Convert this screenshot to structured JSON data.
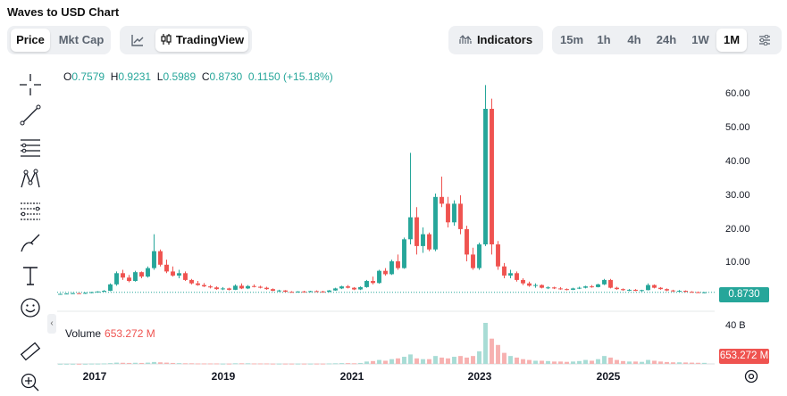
{
  "title": "Waves to USD Chart",
  "view_toggle": {
    "price": "Price",
    "mkt_cap": "Mkt Cap",
    "active": "Price"
  },
  "chart_style": {
    "tradingview": "TradingView"
  },
  "indicators_label": "Indicators",
  "timeframes": [
    "15m",
    "1h",
    "4h",
    "24h",
    "1W",
    "1M"
  ],
  "active_timeframe": "1M",
  "ohlc": {
    "o_label": "O",
    "o": "0.7579",
    "h_label": "H",
    "h": "0.9231",
    "l_label": "L",
    "l": "0.5989",
    "c_label": "C",
    "c": "0.8730",
    "change": "0.1150 (+15.18%)"
  },
  "y_axis_labels": [
    "60.00",
    "50.00",
    "40.00",
    "30.00",
    "20.00",
    "10.00"
  ],
  "current_price": "0.8730",
  "volume": {
    "label": "Volume",
    "value": "653.272 M",
    "axis_label": "40 B",
    "tag": "653.272 M"
  },
  "x_axis_labels": [
    "2017",
    "2019",
    "2021",
    "2023",
    "2025"
  ],
  "colors": {
    "up": "#26a69a",
    "down": "#ef5350",
    "vol_up": "#a8dcd5",
    "vol_down": "#f7b1b0",
    "accent": "#26a69a"
  },
  "chart_data": {
    "type": "candlestick",
    "yaxis_ticks": [
      10,
      20,
      30,
      40,
      50,
      60
    ],
    "candles": [
      [
        0.3,
        0.5,
        0.2,
        0.4
      ],
      [
        0.4,
        0.6,
        0.3,
        0.5
      ],
      [
        0.5,
        0.7,
        0.4,
        0.6
      ],
      [
        0.6,
        0.7,
        0.4,
        0.5
      ],
      [
        0.5,
        0.8,
        0.4,
        0.7
      ],
      [
        0.7,
        1.0,
        0.6,
        0.9
      ],
      [
        0.9,
        1.2,
        0.8,
        1.1
      ],
      [
        1.1,
        1.5,
        1.0,
        1.3
      ],
      [
        1.3,
        3.5,
        1.2,
        3.2
      ],
      [
        3.2,
        7.0,
        2.8,
        6.5
      ],
      [
        6.5,
        7.5,
        4.5,
        5.2
      ],
      [
        5.2,
        6.0,
        3.8,
        4.2
      ],
      [
        4.2,
        7.2,
        4.0,
        6.8
      ],
      [
        6.8,
        7.0,
        5.0,
        5.5
      ],
      [
        5.5,
        8.5,
        5.2,
        8.0
      ],
      [
        8.0,
        18.0,
        7.5,
        13.0
      ],
      [
        13.0,
        13.5,
        8.5,
        9.0
      ],
      [
        9.0,
        10.5,
        6.5,
        7.0
      ],
      [
        7.0,
        8.5,
        5.5,
        5.8
      ],
      [
        5.8,
        7.5,
        5.0,
        6.5
      ],
      [
        6.5,
        7.0,
        4.2,
        4.5
      ],
      [
        4.5,
        4.8,
        3.2,
        3.5
      ],
      [
        3.5,
        4.2,
        2.8,
        3.0
      ],
      [
        3.0,
        3.6,
        2.4,
        2.6
      ],
      [
        2.6,
        3.0,
        2.0,
        2.3
      ],
      [
        2.3,
        2.6,
        1.6,
        1.8
      ],
      [
        1.8,
        2.4,
        1.5,
        2.0
      ],
      [
        2.0,
        2.2,
        1.4,
        1.6
      ],
      [
        1.6,
        3.2,
        1.5,
        2.8
      ],
      [
        2.8,
        3.5,
        1.8,
        2.0
      ],
      [
        2.0,
        3.0,
        1.8,
        2.7
      ],
      [
        2.7,
        3.2,
        2.3,
        2.5
      ],
      [
        2.5,
        2.8,
        2.0,
        2.2
      ],
      [
        2.2,
        2.5,
        1.6,
        1.8
      ],
      [
        1.8,
        2.0,
        1.2,
        1.3
      ],
      [
        1.3,
        1.6,
        1.0,
        1.4
      ],
      [
        1.4,
        1.5,
        0.9,
        1.0
      ],
      [
        1.0,
        1.2,
        0.8,
        0.9
      ],
      [
        0.9,
        1.2,
        0.8,
        1.1
      ],
      [
        1.1,
        1.3,
        0.9,
        1.0
      ],
      [
        1.0,
        1.3,
        0.9,
        1.2
      ],
      [
        1.2,
        1.4,
        1.0,
        1.1
      ],
      [
        1.1,
        1.3,
        0.9,
        1.0
      ],
      [
        1.0,
        1.5,
        0.9,
        1.4
      ],
      [
        1.4,
        2.2,
        1.3,
        2.0
      ],
      [
        2.0,
        2.8,
        1.8,
        2.6
      ],
      [
        2.6,
        3.0,
        2.0,
        2.2
      ],
      [
        2.2,
        2.4,
        1.5,
        1.7
      ],
      [
        1.7,
        2.6,
        1.5,
        2.4
      ],
      [
        2.4,
        4.5,
        2.2,
        4.2
      ],
      [
        4.2,
        5.5,
        3.2,
        3.6
      ],
      [
        3.6,
        7.5,
        3.4,
        7.2
      ],
      [
        7.2,
        8.0,
        5.8,
        6.2
      ],
      [
        6.2,
        10.5,
        6.0,
        10.0
      ],
      [
        10.0,
        12.0,
        7.5,
        8.0
      ],
      [
        8.0,
        17.0,
        7.8,
        16.5
      ],
      [
        16.5,
        42.0,
        15.0,
        23.0
      ],
      [
        23.0,
        26.0,
        12.0,
        14.5
      ],
      [
        14.5,
        20.0,
        12.5,
        18.0
      ],
      [
        18.0,
        18.5,
        13.0,
        13.5
      ],
      [
        13.5,
        30.0,
        13.0,
        29.0
      ],
      [
        29.0,
        35.0,
        26.0,
        27.0
      ],
      [
        27.0,
        29.0,
        20.0,
        21.5
      ],
      [
        21.5,
        28.0,
        20.5,
        27.0
      ],
      [
        27.0,
        29.5,
        18.0,
        19.5
      ],
      [
        19.5,
        20.5,
        10.0,
        12.0
      ],
      [
        12.0,
        14.0,
        7.5,
        8.0
      ],
      [
        8.0,
        15.5,
        7.5,
        15.0
      ],
      [
        15.0,
        62.0,
        14.5,
        55.0
      ],
      [
        55.0,
        58.0,
        12.0,
        15.0
      ],
      [
        15.0,
        16.0,
        7.5,
        8.5
      ],
      [
        8.5,
        9.5,
        5.0,
        5.8
      ],
      [
        5.8,
        7.5,
        5.0,
        6.5
      ],
      [
        6.5,
        7.0,
        4.0,
        4.5
      ],
      [
        4.5,
        5.0,
        3.0,
        3.5
      ],
      [
        3.5,
        4.0,
        2.5,
        2.8
      ],
      [
        2.8,
        3.5,
        2.2,
        3.0
      ],
      [
        3.0,
        3.2,
        2.0,
        2.2
      ],
      [
        2.2,
        2.6,
        1.8,
        2.3
      ],
      [
        2.3,
        2.5,
        1.8,
        2.0
      ],
      [
        2.0,
        2.4,
        1.6,
        1.8
      ],
      [
        1.8,
        2.0,
        1.4,
        1.6
      ],
      [
        1.6,
        2.2,
        1.5,
        2.0
      ],
      [
        2.0,
        2.5,
        1.8,
        2.2
      ],
      [
        2.2,
        2.8,
        2.0,
        2.6
      ],
      [
        2.6,
        3.0,
        2.2,
        2.4
      ],
      [
        2.4,
        3.4,
        2.3,
        3.2
      ],
      [
        3.2,
        4.8,
        3.0,
        4.5
      ],
      [
        4.5,
        4.8,
        2.0,
        2.2
      ],
      [
        2.2,
        2.5,
        1.6,
        1.8
      ],
      [
        1.8,
        2.0,
        1.3,
        1.5
      ],
      [
        1.5,
        1.8,
        1.2,
        1.6
      ],
      [
        1.6,
        1.8,
        1.2,
        1.3
      ],
      [
        1.3,
        1.6,
        1.1,
        1.5
      ],
      [
        1.5,
        3.5,
        1.4,
        3.0
      ],
      [
        3.0,
        3.2,
        2.0,
        2.2
      ],
      [
        2.2,
        2.4,
        1.6,
        1.8
      ],
      [
        1.8,
        2.0,
        1.2,
        1.4
      ],
      [
        1.4,
        1.6,
        1.0,
        1.2
      ],
      [
        1.2,
        1.5,
        1.0,
        1.3
      ],
      [
        1.3,
        1.4,
        0.9,
        1.0
      ],
      [
        1.0,
        1.2,
        0.8,
        0.9
      ],
      [
        0.9,
        1.1,
        0.7,
        0.8
      ],
      [
        0.76,
        0.92,
        0.6,
        0.87
      ]
    ],
    "volumes": [
      0.1,
      0.1,
      0.1,
      0.1,
      0.1,
      0.2,
      0.2,
      0.3,
      0.5,
      0.8,
      0.7,
      0.6,
      0.7,
      0.6,
      0.8,
      1.2,
      1.0,
      0.8,
      0.6,
      0.5,
      0.4,
      0.4,
      0.3,
      0.3,
      0.3,
      0.3,
      0.2,
      0.2,
      0.4,
      0.4,
      0.4,
      0.3,
      0.3,
      0.3,
      0.2,
      0.2,
      0.2,
      0.2,
      0.2,
      0.2,
      0.2,
      0.2,
      0.2,
      0.3,
      0.4,
      0.5,
      0.5,
      0.4,
      0.6,
      1.5,
      1.8,
      2.5,
      2.0,
      3.0,
      3.5,
      4.5,
      6.0,
      3.5,
      3.0,
      3.0,
      5.0,
      4.0,
      3.5,
      4.5,
      5.0,
      4.0,
      5.0,
      8.0,
      26.0,
      16.0,
      12.0,
      7.0,
      5.0,
      4.0,
      3.0,
      2.5,
      2.0,
      2.0,
      1.8,
      1.5,
      1.5,
      1.3,
      1.5,
      1.8,
      2.5,
      2.0,
      3.0,
      5.0,
      4.0,
      2.5,
      1.8,
      1.5,
      1.5,
      1.3,
      2.5,
      2.0,
      1.5,
      1.2,
      1.0,
      1.0,
      0.9,
      0.8,
      0.7,
      0.65
    ]
  }
}
